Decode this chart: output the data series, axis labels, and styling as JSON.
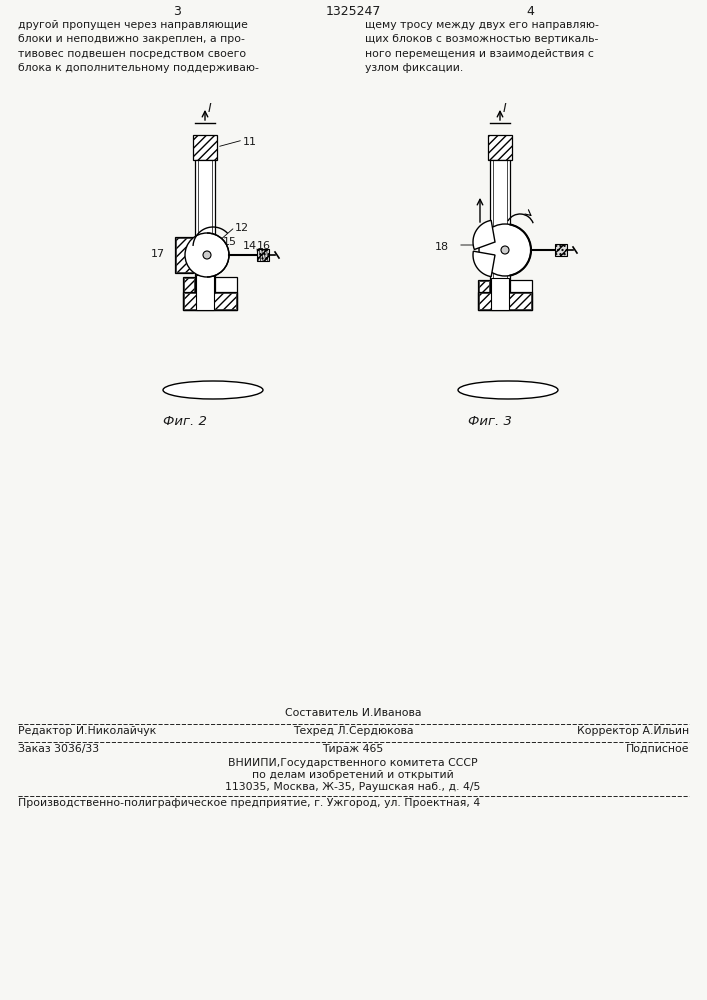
{
  "bg_color": "#f7f7f4",
  "page_num_left": "3",
  "page_num_center": "1325247",
  "page_num_right": "4",
  "text_left": "другой пропущен через направляющие\nблоки и неподвижно закреплен, а про-\nтивовес подвешен посредством своего\nблока к дополнительному поддерживаю-",
  "text_right": "щему тросу между двух его направляю-\nщих блоков с возможностью вертикаль-\nного перемещения и взаимодействия с\nузлом фиксации.",
  "fig2_label": "Фиг. 2",
  "fig3_label": "Фиг. 3",
  "footer_sestavitel": "Составитель И.Иванова",
  "footer_redaktor": "Редактор И.Николайчук",
  "footer_tehred": "Техред Л.Сердюкова",
  "footer_korrektor": "Корректор А.Ильин",
  "footer_zakaz": "Заказ 3036/33",
  "footer_tirazh": "Тираж 465",
  "footer_podpisnoe": "Подписное",
  "footer_vniipи": "ВНИИПИ,Государственного комитета СССР",
  "footer_po_delam": "по делам изобретений и открытий",
  "footer_adres": "113035, Москва, Ж-35, Раушская наб., д. 4/5",
  "footer_last": "Производственно-полиграфическое предприятие, г. Ужгород, ул. Проектная, 4"
}
